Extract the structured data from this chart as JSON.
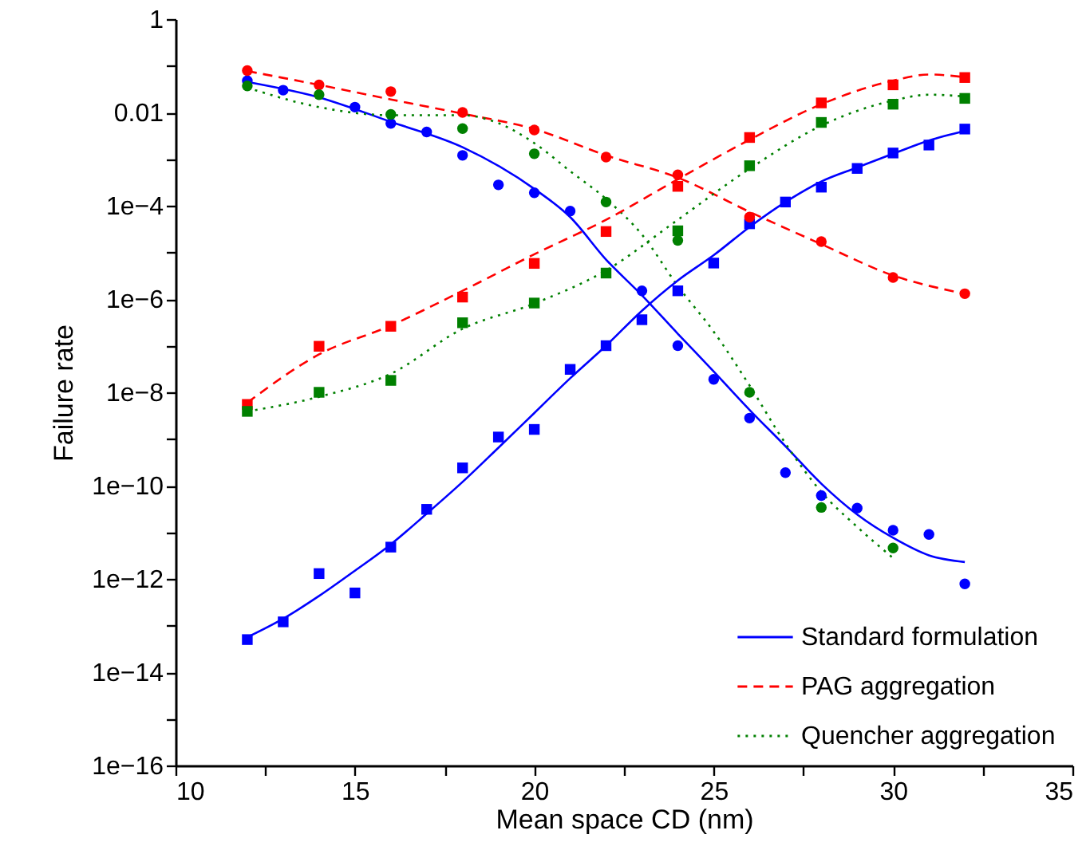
{
  "chart_data": {
    "type": "line",
    "xlabel": "Mean space CD (nm)",
    "ylabel": "Failure rate",
    "log": "y",
    "grid": false,
    "legend": "bottom right",
    "xlim": [
      10,
      35
    ],
    "xticks": [
      10,
      {
        "value": 12.5,
        "label": null
      },
      15,
      {
        "value": 17.5,
        "label": null
      },
      20,
      {
        "value": 22.5,
        "label": null
      },
      25,
      {
        "value": 27.5,
        "label": null
      },
      30,
      {
        "value": 32.5,
        "label": null
      },
      35
    ],
    "ylim": [
      1e-16,
      1
    ],
    "yticks": [
      {
        "value": 1e-16,
        "label": "1e−16"
      },
      {
        "value": 1e-15,
        "label": null
      },
      {
        "value": 1e-14,
        "label": "1e−14"
      },
      {
        "value": 1e-13,
        "label": null
      },
      {
        "value": 1e-12,
        "label": "1e−12"
      },
      {
        "value": 1e-11,
        "label": null
      },
      {
        "value": 1e-10,
        "label": "1e−10"
      },
      {
        "value": 1e-09,
        "label": null
      },
      {
        "value": 1e-08,
        "label": "1e−8"
      },
      {
        "value": 1e-07,
        "label": null
      },
      {
        "value": 1e-06,
        "label": "1e−6"
      },
      {
        "value": 1e-05,
        "label": null
      },
      {
        "value": 0.0001,
        "label": "1e−4"
      },
      {
        "value": 0.001,
        "label": null
      },
      {
        "value": 0.01,
        "label": "0.01"
      },
      {
        "value": 0.1,
        "label": null
      },
      1
    ],
    "series": [
      {
        "name": "Standard formulation",
        "type": "line",
        "line_style": "solid",
        "marker": "none",
        "color": "#0000ff",
        "x": [
          12,
          14,
          16,
          18,
          20,
          21,
          22,
          23,
          24,
          25,
          26,
          27,
          28,
          29,
          30,
          31,
          32
        ],
        "values": [
          0.045,
          0.021,
          0.0063,
          0.0018,
          0.00023,
          5.7e-05,
          7e-06,
          1.2e-06,
          1.8e-07,
          2.8e-08,
          4.2e-09,
          7e-10,
          1.1e-10,
          2.4e-11,
          7.6e-12,
          3.2e-12,
          2.3e-12
        ]
      },
      {
        "name": "PAG aggregation",
        "type": "line",
        "line_style": "dashed",
        "marker": "none",
        "color": "#ff0000",
        "x": [
          12,
          14,
          16,
          18,
          20,
          22,
          24,
          26,
          28,
          30,
          32
        ],
        "values": [
          0.077,
          0.039,
          0.019,
          0.0094,
          0.0044,
          0.0012,
          0.0004,
          7.4e-05,
          1.5e-05,
          3.2e-06,
          1.3e-06
        ]
      },
      {
        "name": "Quencher aggregation",
        "type": "line",
        "line_style": "dotted",
        "marker": "none",
        "color": "#008000",
        "x": [
          12,
          14,
          16,
          18,
          19,
          20,
          21,
          22,
          23,
          24,
          25,
          26,
          27,
          28,
          29,
          30
        ],
        "values": [
          0.034,
          0.013,
          0.0087,
          0.0087,
          0.0059,
          0.0022,
          0.00055,
          0.00014,
          2.4e-05,
          1.9e-06,
          2e-07,
          1.4e-08,
          8e-10,
          7.3e-11,
          1.3e-11,
          2.8e-12
        ]
      },
      {
        "type": "line",
        "line_style": "solid",
        "marker": "none",
        "color": "#0000ff",
        "x": [
          12,
          13,
          14,
          15,
          16,
          17,
          18,
          19,
          20,
          21,
          22,
          23,
          24,
          25,
          26,
          27,
          28,
          29,
          30,
          31,
          32
        ],
        "values": [
          5.6e-14,
          1.4e-13,
          4.3e-13,
          1.5e-12,
          5.5e-12,
          2.5e-11,
          1.2e-10,
          6.5e-10,
          3.6e-09,
          2e-08,
          1e-07,
          5.6e-07,
          2.5e-06,
          8.7e-06,
          3.5e-05,
          0.00012,
          0.00033,
          0.00066,
          0.0013,
          0.0025,
          0.004
        ]
      },
      {
        "type": "line",
        "line_style": "dashed",
        "marker": "none",
        "color": "#ff0000",
        "x": [
          12,
          14,
          16,
          18,
          20,
          22,
          24,
          26,
          28,
          30,
          31,
          32
        ],
        "values": [
          6e-09,
          6.5e-08,
          2.7e-07,
          1.5e-06,
          9.1e-06,
          5e-05,
          0.00037,
          0.0026,
          0.015,
          0.048,
          0.065,
          0.057
        ]
      },
      {
        "type": "line",
        "line_style": "dotted",
        "marker": "none",
        "color": "#008000",
        "x": [
          12,
          14,
          16,
          18,
          20,
          22,
          24,
          26,
          28,
          30,
          31,
          32
        ],
        "values": [
          3.9e-09,
          8e-09,
          2.5e-08,
          2.3e-07,
          8e-07,
          4.1e-06,
          5e-05,
          0.00062,
          0.0052,
          0.018,
          0.024,
          0.022
        ]
      },
      {
        "type": "scatter",
        "marker": "circle",
        "color": "#0000ff",
        "x": [
          12,
          13,
          14,
          15,
          16,
          17,
          18,
          19,
          20,
          21,
          23,
          24,
          25,
          26,
          27,
          28,
          29,
          30,
          31,
          32
        ],
        "values": [
          0.048,
          0.03,
          null,
          0.013,
          0.0058,
          0.0038,
          0.0012,
          0.00028,
          0.00019,
          7.7e-05,
          1.5e-06,
          1e-07,
          1.9e-08,
          2.8e-09,
          1.9e-10,
          6.1e-11,
          3.3e-11,
          1.1e-11,
          9e-12,
          7.8e-13
        ]
      },
      {
        "type": "scatter",
        "marker": "square",
        "color": "#0000ff",
        "x": [
          12,
          13,
          14,
          15,
          16,
          17,
          18,
          19,
          20,
          21,
          22,
          23,
          24,
          25,
          26,
          27,
          28,
          29,
          30,
          31,
          32
        ],
        "values": [
          5e-14,
          1.2e-13,
          1.3e-12,
          5e-13,
          4.8e-12,
          3.1e-11,
          2.4e-10,
          1.1e-09,
          1.6e-09,
          3.1e-08,
          1e-07,
          3.6e-07,
          1.5e-06,
          5.9e-06,
          4.1e-05,
          0.00012,
          0.00025,
          0.00063,
          0.00135,
          0.002,
          0.0044
        ]
      },
      {
        "type": "scatter",
        "marker": "circle",
        "color": "#ff0000",
        "x": [
          12,
          14,
          16,
          18,
          20,
          22,
          24,
          26,
          28,
          30,
          32
        ],
        "values": [
          0.079,
          0.039,
          0.028,
          0.01,
          0.0042,
          0.0011,
          0.00046,
          5.7e-05,
          1.7e-05,
          2.9e-06,
          1.3e-06
        ]
      },
      {
        "type": "scatter",
        "marker": "square",
        "color": "#ff0000",
        "x": [
          12,
          14,
          16,
          18,
          20,
          22,
          24,
          26,
          28,
          30,
          32
        ],
        "values": [
          5.5e-09,
          9.7e-08,
          2.6e-07,
          1.1e-06,
          5.8e-06,
          2.8e-05,
          0.00026,
          0.0029,
          0.016,
          0.039,
          0.056
        ]
      },
      {
        "type": "scatter",
        "marker": "circle",
        "color": "#008000",
        "x": [
          12,
          14,
          16,
          18,
          20,
          22,
          24,
          26,
          28,
          30
        ],
        "values": [
          0.037,
          0.024,
          0.0091,
          0.0045,
          0.0013,
          0.00012,
          1.8e-05,
          1e-08,
          3.4e-11,
          4.6e-12
        ]
      },
      {
        "type": "scatter",
        "marker": "square",
        "color": "#008000",
        "x": [
          12,
          14,
          16,
          18,
          20,
          22,
          24,
          26,
          28,
          30,
          32
        ],
        "values": [
          3.9e-09,
          1e-08,
          1.8e-08,
          3.1e-07,
          8.2e-07,
          3.6e-06,
          2.9e-05,
          0.00072,
          0.0061,
          0.015,
          0.02
        ]
      }
    ]
  }
}
